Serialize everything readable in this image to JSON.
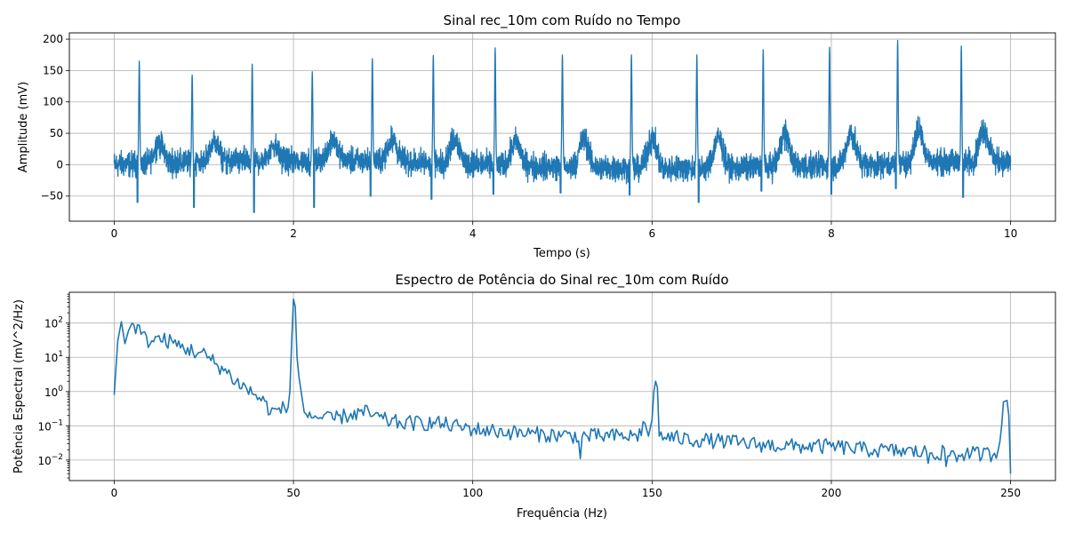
{
  "chart_data": [
    {
      "type": "line",
      "title": "Sinal rec_10m com Ruído no Tempo",
      "xlabel": "Tempo (s)",
      "ylabel": "Amplitude (mV)",
      "xlim": [
        -0.5,
        10.5
      ],
      "ylim": [
        -90,
        210
      ],
      "xticks": [
        0,
        2,
        4,
        6,
        8,
        10
      ],
      "yticks": [
        -50,
        0,
        50,
        100,
        150,
        200
      ],
      "grid": true,
      "color": "#1f77b4",
      "sample_rate_hz": 500,
      "noise_band_mV": [
        -30,
        30
      ],
      "r_peaks": [
        {
          "t": 0.28,
          "y": 165
        },
        {
          "t": 0.87,
          "y": 143
        },
        {
          "t": 1.54,
          "y": 160
        },
        {
          "t": 2.21,
          "y": 148
        },
        {
          "t": 2.88,
          "y": 169
        },
        {
          "t": 3.56,
          "y": 174
        },
        {
          "t": 4.25,
          "y": 186
        },
        {
          "t": 5.0,
          "y": 175
        },
        {
          "t": 5.77,
          "y": 175
        },
        {
          "t": 6.5,
          "y": 175
        },
        {
          "t": 7.24,
          "y": 183
        },
        {
          "t": 7.98,
          "y": 187
        },
        {
          "t": 8.74,
          "y": 198
        },
        {
          "t": 9.45,
          "y": 189
        }
      ],
      "s_troughs": [
        {
          "t": 0.26,
          "y": -60
        },
        {
          "t": 0.89,
          "y": -68
        },
        {
          "t": 1.56,
          "y": -76
        },
        {
          "t": 2.23,
          "y": -68
        },
        {
          "t": 2.86,
          "y": -50
        },
        {
          "t": 3.54,
          "y": -55
        },
        {
          "t": 4.23,
          "y": -47
        },
        {
          "t": 4.98,
          "y": -45
        },
        {
          "t": 5.75,
          "y": -48
        },
        {
          "t": 6.52,
          "y": -60
        },
        {
          "t": 7.22,
          "y": -42
        },
        {
          "t": 8.0,
          "y": -47
        },
        {
          "t": 8.72,
          "y": -38
        },
        {
          "t": 9.47,
          "y": -52
        }
      ],
      "t_waves": [
        {
          "t": 0.5,
          "y": 64
        },
        {
          "t": 1.12,
          "y": 63
        },
        {
          "t": 1.78,
          "y": 55
        },
        {
          "t": 2.44,
          "y": 68
        },
        {
          "t": 3.1,
          "y": 68
        },
        {
          "t": 3.8,
          "y": 75
        },
        {
          "t": 4.48,
          "y": 70
        },
        {
          "t": 5.24,
          "y": 78
        },
        {
          "t": 6.0,
          "y": 80
        },
        {
          "t": 6.74,
          "y": 82
        },
        {
          "t": 7.48,
          "y": 88
        },
        {
          "t": 8.22,
          "y": 84
        },
        {
          "t": 8.98,
          "y": 86
        },
        {
          "t": 9.7,
          "y": 87
        }
      ]
    },
    {
      "type": "line",
      "title": "Espectro de Potência do Sinal rec_10m com Ruído",
      "xlabel": "Frequência (Hz)",
      "ylabel": "Potência Espectral (mV^2/Hz)",
      "xlim": [
        -12.5,
        262.5
      ],
      "ylim_log10": [
        -2.6,
        2.9
      ],
      "yscale": "log",
      "xticks": [
        0,
        50,
        100,
        150,
        200,
        250
      ],
      "yticks": [
        {
          "base": "10",
          "exp": "−2",
          "value": 0.01
        },
        {
          "base": "10",
          "exp": "−1",
          "value": 0.1
        },
        {
          "base": "10",
          "exp": "0",
          "value": 1
        },
        {
          "base": "10",
          "exp": "1",
          "value": 10
        },
        {
          "base": "10",
          "exp": "2",
          "value": 100
        }
      ],
      "grid": true,
      "color": "#1f77b4",
      "freq_step_hz": 0.5,
      "trend": [
        [
          0,
          0.8
        ],
        [
          1,
          30
        ],
        [
          2,
          110
        ],
        [
          3,
          25
        ],
        [
          4,
          60
        ],
        [
          5,
          100
        ],
        [
          7,
          60
        ],
        [
          9,
          30
        ],
        [
          12,
          35
        ],
        [
          15,
          30
        ],
        [
          20,
          18
        ],
        [
          25,
          12
        ],
        [
          28,
          7
        ],
        [
          31,
          4
        ],
        [
          34,
          2
        ],
        [
          38,
          1.0
        ],
        [
          41,
          0.6
        ],
        [
          44,
          0.25
        ],
        [
          46,
          0.3
        ],
        [
          48,
          0.33
        ],
        [
          49,
          1.0
        ],
        [
          49.5,
          30
        ],
        [
          50,
          500
        ],
        [
          50.5,
          300
        ],
        [
          51,
          10
        ],
        [
          52,
          0.8
        ],
        [
          53,
          0.25
        ],
        [
          55,
          0.2
        ],
        [
          60,
          0.15
        ],
        [
          65,
          0.2
        ],
        [
          70,
          0.25
        ],
        [
          75,
          0.15
        ],
        [
          80,
          0.12
        ],
        [
          90,
          0.12
        ],
        [
          100,
          0.08
        ],
        [
          110,
          0.065
        ],
        [
          120,
          0.055
        ],
        [
          130,
          0.05
        ],
        [
          140,
          0.05
        ],
        [
          146,
          0.05
        ],
        [
          148,
          0.12
        ],
        [
          149,
          0.05
        ],
        [
          150,
          0.15
        ],
        [
          150.5,
          1.0
        ],
        [
          151,
          2.0
        ],
        [
          151.5,
          1.3
        ],
        [
          152,
          0.05
        ],
        [
          160,
          0.04
        ],
        [
          170,
          0.035
        ],
        [
          180,
          0.028
        ],
        [
          190,
          0.025
        ],
        [
          200,
          0.025
        ],
        [
          210,
          0.02
        ],
        [
          220,
          0.018
        ],
        [
          230,
          0.016
        ],
        [
          240,
          0.015
        ],
        [
          246,
          0.015
        ],
        [
          247.5,
          0.1
        ],
        [
          248,
          0.5
        ],
        [
          249,
          0.55
        ],
        [
          249.5,
          0.2
        ],
        [
          250,
          0.004
        ]
      ],
      "dips": [
        {
          "f": 130,
          "y": 0.011
        },
        {
          "f": 227,
          "y": 0.008
        },
        {
          "f": 232,
          "y": 0.0065
        },
        {
          "f": 235,
          "y": 0.009
        },
        {
          "f": 250,
          "y": 0.004
        }
      ]
    }
  ]
}
